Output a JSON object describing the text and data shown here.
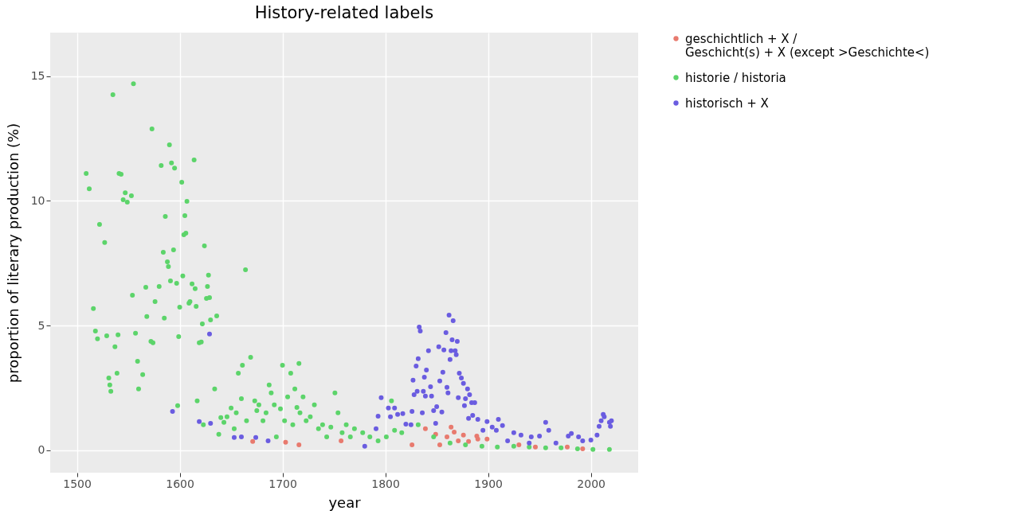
{
  "chart_data": {
    "type": "scatter",
    "title": "History-related labels",
    "xlabel": "year",
    "ylabel": "proportion of literary production (%)",
    "xlim": [
      1474,
      2046
    ],
    "ylim": [
      -0.9,
      16.75
    ],
    "xticks": [
      1500,
      1600,
      1700,
      1800,
      1900,
      2000
    ],
    "yticks": [
      0,
      5,
      10,
      15
    ],
    "grid": true,
    "legend": "right",
    "marker": "circle",
    "series": [
      {
        "name": "geschichtlich + X /\nGeschicht(s) + X (except >Geschichte<)",
        "color": "#e87a6e",
        "x": [
          1671,
          1703,
          1716,
          1757,
          1826,
          1839,
          1849,
          1853,
          1860,
          1864,
          1867,
          1871,
          1876,
          1881,
          1889,
          1890,
          1899,
          1930,
          1946,
          1977,
          1992
        ],
        "values": [
          0.35,
          0.32,
          0.22,
          0.38,
          0.22,
          0.86,
          0.64,
          0.22,
          0.54,
          0.93,
          0.73,
          0.38,
          0.61,
          0.35,
          0.57,
          0.45,
          0.45,
          0.22,
          0.13,
          0.13,
          0.06
        ]
      },
      {
        "name": "historie / historia",
        "color": "#5cd46a",
        "x": [
          1509,
          1535,
          1512,
          1555,
          1573,
          1516,
          1518,
          1520,
          1522,
          1527,
          1529,
          1531,
          1532,
          1533,
          1537,
          1539,
          1540,
          1541,
          1543,
          1545,
          1547,
          1549,
          1553,
          1554,
          1557,
          1559,
          1560,
          1564,
          1567,
          1568,
          1572,
          1574,
          1576,
          1580,
          1582,
          1584,
          1585,
          1586,
          1588,
          1589,
          1590,
          1591,
          1592,
          1594,
          1595,
          1597,
          1598,
          1599,
          1600,
          1602,
          1603,
          1604,
          1605,
          1606,
          1607,
          1609,
          1610,
          1612,
          1614,
          1615,
          1616,
          1619,
          1621,
          1622,
          1624,
          1626,
          1627,
          1628,
          1629,
          1630,
          1634,
          1636,
          1640,
          1643,
          1646,
          1650,
          1653,
          1655,
          1657,
          1660,
          1661,
          1664,
          1665,
          1669,
          1673,
          1675,
          1677,
          1681,
          1684,
          1687,
          1689,
          1692,
          1694,
          1698,
          1700,
          1702,
          1705,
          1708,
          1710,
          1712,
          1714,
          1716,
          1717,
          1720,
          1723,
          1727,
          1731,
          1735,
          1739,
          1743,
          1747,
          1751,
          1754,
          1758,
          1762,
          1766,
          1770,
          1778,
          1785,
          1793,
          1801,
          1809,
          1816,
          1832,
          1847,
          1863,
          1878,
          1894,
          1909,
          1925,
          1940,
          1956,
          1971,
          1987,
          2002,
          2018,
          1617,
          1623,
          1638,
          1806
        ],
        "values": [
          11.1,
          14.26,
          10.49,
          14.7,
          12.89,
          5.68,
          4.78,
          4.47,
          9.06,
          8.33,
          4.59,
          2.9,
          2.62,
          2.36,
          4.15,
          3.09,
          4.63,
          11.1,
          11.07,
          10.05,
          10.33,
          9.95,
          10.21,
          6.22,
          4.69,
          3.57,
          2.46,
          3.03,
          6.54,
          5.36,
          4.37,
          4.31,
          5.96,
          6.57,
          11.42,
          7.94,
          5.3,
          9.38,
          7.56,
          7.37,
          12.25,
          6.79,
          11.52,
          8.04,
          11.32,
          6.7,
          1.79,
          4.56,
          5.74,
          10.75,
          6.99,
          8.64,
          9.41,
          8.71,
          9.98,
          5.9,
          5.96,
          6.67,
          11.64,
          6.48,
          5.77,
          4.31,
          4.34,
          5.07,
          8.2,
          6.09,
          6.57,
          7.02,
          6.12,
          5.23,
          2.46,
          5.39,
          1.31,
          1.12,
          1.34,
          1.69,
          0.86,
          1.5,
          3.09,
          2.07,
          3.41,
          7.24,
          1.18,
          3.73,
          1.98,
          1.59,
          1.82,
          1.18,
          1.5,
          2.62,
          2.3,
          1.82,
          0.54,
          1.66,
          3.41,
          1.18,
          2.14,
          3.09,
          1.02,
          2.46,
          1.72,
          3.48,
          1.5,
          2.14,
          1.18,
          1.34,
          1.82,
          0.86,
          1.02,
          0.54,
          0.93,
          2.3,
          1.5,
          0.7,
          1.02,
          0.54,
          0.86,
          0.7,
          0.54,
          0.38,
          0.54,
          0.8,
          0.7,
          1.02,
          0.54,
          0.29,
          0.22,
          0.16,
          0.13,
          0.16,
          0.13,
          0.1,
          0.1,
          0.06,
          0.03,
          0.03,
          1.98,
          1.02,
          0.64,
          1.98
        ]
      },
      {
        "name": "historisch + X",
        "color": "#6a5ce0",
        "x": [
          1629,
          1593,
          1619,
          1630,
          1653,
          1660,
          1674,
          1686,
          1780,
          1791,
          1793,
          1796,
          1803,
          1805,
          1809,
          1812,
          1817,
          1820,
          1825,
          1826,
          1827,
          1828,
          1830,
          1831,
          1832,
          1833,
          1834,
          1836,
          1837,
          1838,
          1839,
          1840,
          1842,
          1844,
          1845,
          1847,
          1849,
          1850,
          1852,
          1853,
          1855,
          1856,
          1857,
          1859,
          1860,
          1861,
          1862,
          1863,
          1864,
          1865,
          1866,
          1868,
          1869,
          1870,
          1871,
          1872,
          1874,
          1876,
          1877,
          1878,
          1880,
          1881,
          1882,
          1884,
          1885,
          1887,
          1890,
          1895,
          1899,
          1904,
          1908,
          1910,
          1914,
          1919,
          1925,
          1932,
          1940,
          1942,
          1950,
          1956,
          1959,
          1966,
          1978,
          1981,
          1988,
          1992,
          2000,
          2006,
          2008,
          2010,
          2012,
          2013,
          2018,
          2019,
          2020
        ],
        "values": [
          4.66,
          1.56,
          1.15,
          1.08,
          0.51,
          0.54,
          0.51,
          0.38,
          0.16,
          0.86,
          1.37,
          2.11,
          1.69,
          1.34,
          1.69,
          1.44,
          1.47,
          1.05,
          1.02,
          1.56,
          2.81,
          2.23,
          3.38,
          2.36,
          3.67,
          4.94,
          4.78,
          1.5,
          2.36,
          2.93,
          2.17,
          3.22,
          3.99,
          2.55,
          2.17,
          1.59,
          1.08,
          1.75,
          4.15,
          2.78,
          1.53,
          3.13,
          4.02,
          4.72,
          2.52,
          2.3,
          5.42,
          3.64,
          3.99,
          4.43,
          5.2,
          3.99,
          3.83,
          4.37,
          2.11,
          3.09,
          2.9,
          2.68,
          1.79,
          2.07,
          2.46,
          1.28,
          2.23,
          1.91,
          1.4,
          1.91,
          1.24,
          0.8,
          1.15,
          0.93,
          0.8,
          1.24,
          0.99,
          0.38,
          0.7,
          0.61,
          0.29,
          0.54,
          0.57,
          1.12,
          0.8,
          0.29,
          0.57,
          0.67,
          0.54,
          0.38,
          0.41,
          0.61,
          0.96,
          1.18,
          1.44,
          1.34,
          1.12,
          0.96,
          1.18
        ]
      }
    ]
  }
}
